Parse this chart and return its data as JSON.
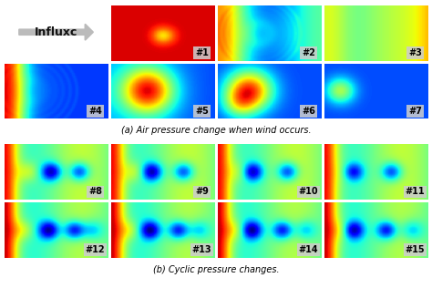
{
  "title_a": "(a) Air pressure change when wind occurs.",
  "title_b": "(b) Cyclic pressure changes.",
  "influx_label": "Influxc",
  "panel_labels_a": [
    "#1",
    "#2",
    "#3",
    "#4",
    "#5",
    "#6",
    "#7"
  ],
  "panel_labels_b": [
    "#8",
    "#9",
    "#10",
    "#11",
    "#12",
    "#13",
    "#14",
    "#15"
  ],
  "bg_color": "#ffffff",
  "label_box_color": "#cccccc",
  "fig_width": 4.74,
  "fig_height": 3.16,
  "dpi": 100
}
